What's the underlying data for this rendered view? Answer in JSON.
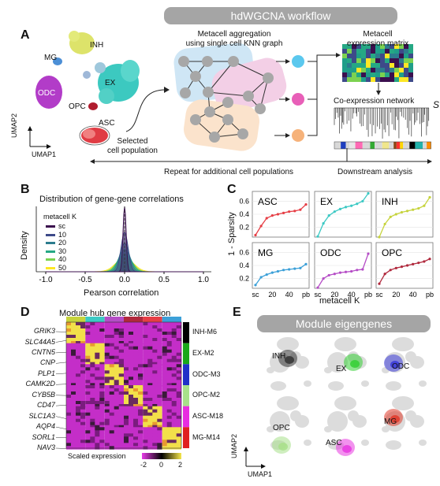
{
  "panel_a": {
    "letter": "A",
    "banner": "hdWGCNA workflow",
    "clusters": [
      "INH",
      "MG",
      "EX",
      "ODC",
      "OPC",
      "ASC"
    ],
    "umap_x": "UMAP1",
    "umap_y": "UMAP2",
    "selected_label": "Selected\ncell population",
    "metacell_label": "Metacell aggregation\nusing single cell KNN graph",
    "matrix_label": "Metacell\nexpression matrix",
    "coexpr_label": "Co-expression network",
    "repeat_label": "Repeat for additional cell populations",
    "downstream_label": "Downstream analysis",
    "edge_glyph": "S",
    "colors": {
      "INH": "#d9e05a",
      "MG": "#4c8fd6",
      "EX": "#3cc9c0",
      "ODC": "#b23cc8",
      "OPC": "#b01c2e",
      "ASC": "#e03c44"
    }
  },
  "panel_b": {
    "letter": "B",
    "title": "Distribution of gene-gene correlations",
    "ylabel": "Density",
    "xlabel": "Pearson correlation",
    "legend_title": "metacell K",
    "legend": [
      "sc",
      "10",
      "20",
      "30",
      "40",
      "50"
    ],
    "legend_colors": [
      "#3b0f4e",
      "#3d4a89",
      "#2c7c8e",
      "#25a884",
      "#7cd250",
      "#fde725"
    ],
    "xticks": [
      "-1.0",
      "-0.5",
      "0.0",
      "0.5",
      "1.0"
    ]
  },
  "panel_c": {
    "letter": "C",
    "ylabel": "1 - Sparsity",
    "xlabel": "metacell K",
    "yticks": [
      "0.6",
      "0.4",
      "0.2"
    ],
    "xticks": [
      "sc",
      "20",
      "40",
      "pb"
    ],
    "panels": [
      "ASC",
      "EX",
      "INH",
      "MG",
      "ODC",
      "OPC"
    ],
    "colors": [
      "#e63e45",
      "#3cc9c4",
      "#c6d33c",
      "#3ca0d8",
      "#b54dc6",
      "#b0283c"
    ]
  },
  "panel_d": {
    "letter": "D",
    "title": "Module hub gene expression",
    "genes": [
      "GRIK3",
      "SLC44A5",
      "CNTN5",
      "CNP",
      "PLP1",
      "CAMK2D",
      "CYB5B",
      "CD47",
      "SLC1A3",
      "AQP4",
      "SORL1",
      "NAV3"
    ],
    "modules": [
      "INH-M6",
      "EX-M2",
      "ODC-M3",
      "OPC-M2",
      "ASC-M18",
      "MG-M14"
    ],
    "module_colors": [
      "#000000",
      "#1aa81a",
      "#2030c8",
      "#a8e08a",
      "#e82ce0",
      "#e02020"
    ],
    "column_colors": [
      "#c6d33c",
      "#3cc9c4",
      "#b54dc6",
      "#b0283c",
      "#e63e45",
      "#3ca0d8"
    ],
    "scale_label": "Scaled expression",
    "scale_ticks": [
      "-2",
      "0",
      "2"
    ]
  },
  "panel_e": {
    "letter": "E",
    "banner": "Module eigengenes",
    "labels": [
      "INH",
      "EX",
      "ODC",
      "OPC",
      "ASC",
      "MG"
    ],
    "umap_x": "UMAP1",
    "umap_y": "UMAP2"
  }
}
